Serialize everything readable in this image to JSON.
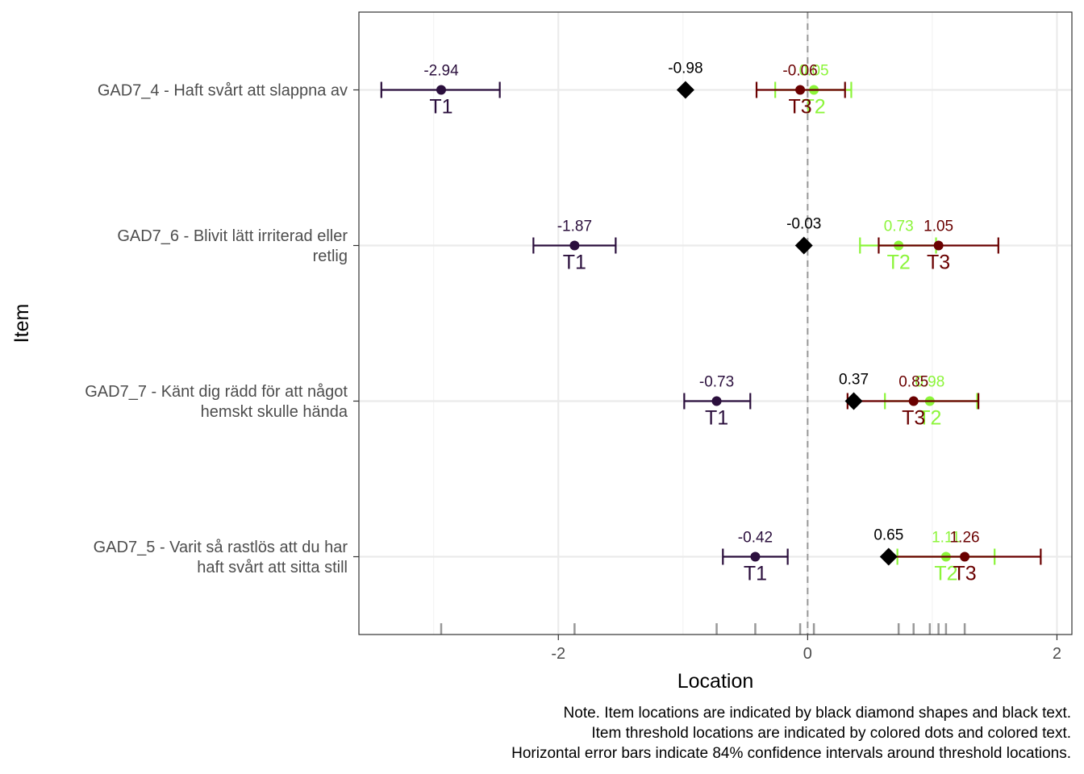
{
  "chart_data": {
    "type": "scatter",
    "xlabel": "Location",
    "ylabel": "Item",
    "xlim": [
      -3.6,
      2.12
    ],
    "x_ticks": [
      -2,
      0,
      2
    ],
    "x_tick_labels": [
      "-2",
      "0",
      "2"
    ],
    "grid": true,
    "reference_line_x": 0,
    "items": [
      {
        "label": [
          "GAD7_5 - Varit så rastlös att du har",
          "haft svårt att sitta still"
        ],
        "location": 0.65,
        "location_label": "0.65",
        "thresholds": [
          {
            "name": "T1",
            "value": -0.42,
            "value_label": "-0.42",
            "ci": [
              -0.68,
              -0.16
            ]
          },
          {
            "name": "T2",
            "value": 1.11,
            "value_label": "1.11",
            "ci": [
              0.72,
              1.5
            ]
          },
          {
            "name": "T3",
            "value": 1.26,
            "value_label": "1.26",
            "ci": [
              0.65,
              1.87
            ]
          }
        ]
      },
      {
        "label": [
          "GAD7_7 - Känt dig rädd för att något",
          "hemskt skulle hända"
        ],
        "location": 0.37,
        "location_label": "0.37",
        "thresholds": [
          {
            "name": "T1",
            "value": -0.73,
            "value_label": "-0.73",
            "ci": [
              -0.99,
              -0.46
            ]
          },
          {
            "name": "T2",
            "value": 0.98,
            "value_label": "0.98",
            "ci": [
              0.62,
              1.36
            ]
          },
          {
            "name": "T3",
            "value": 0.85,
            "value_label": "0.85",
            "ci": [
              0.32,
              1.37
            ]
          }
        ]
      },
      {
        "label": [
          "GAD7_6 - Blivit lätt irriterad eller",
          "retlig"
        ],
        "location": -0.03,
        "location_label": "-0.03",
        "thresholds": [
          {
            "name": "T1",
            "value": -1.87,
            "value_label": "-1.87",
            "ci": [
              -2.2,
              -1.54
            ]
          },
          {
            "name": "T2",
            "value": 0.73,
            "value_label": "0.73",
            "ci": [
              0.42,
              1.03
            ]
          },
          {
            "name": "T3",
            "value": 1.05,
            "value_label": "1.05",
            "ci": [
              0.57,
              1.53
            ]
          }
        ]
      },
      {
        "label": [
          "GAD7_4 - Haft svårt att slappna av"
        ],
        "location": -0.98,
        "location_label": "-0.98",
        "thresholds": [
          {
            "name": "T1",
            "value": -2.94,
            "value_label": "-2.94",
            "ci": [
              -3.42,
              -2.47
            ]
          },
          {
            "name": "T2",
            "value": 0.05,
            "value_label": "0.05",
            "ci": [
              -0.26,
              0.35
            ]
          },
          {
            "name": "T3",
            "value": -0.06,
            "value_label": "-0.06",
            "ci": [
              -0.41,
              0.3
            ]
          }
        ]
      }
    ],
    "threshold_colors": {
      "T1": "#2b0f3d",
      "T2": "#8cf53a",
      "T3": "#6a0000"
    },
    "location_color": "#000000",
    "note": [
      "Note. Item locations are indicated by black diamond shapes and black text.",
      "Item threshold locations are indicated by colored dots and colored text.",
      "Horizontal error bars indicate 84% confidence intervals around threshold locations."
    ]
  }
}
